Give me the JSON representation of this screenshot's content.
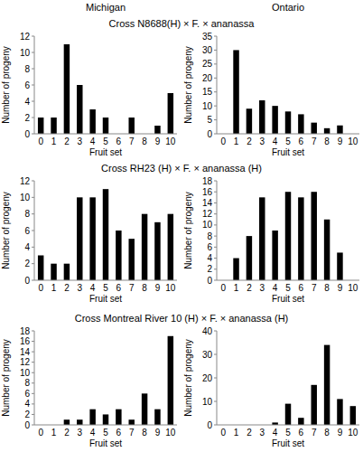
{
  "column_labels": [
    "Michigan",
    "Ontario"
  ],
  "row_titles": [
    "Cross N8688(H) × F. × ananassa",
    "Cross RH23 (H) × F. × ananassa (H)",
    "Cross Montreal River 10 (H) × F. × ananassa (H)"
  ],
  "chart_data": [
    {
      "type": "bar",
      "x_label": "Fruit set",
      "y_label": "Number of progeny",
      "color": "#000000",
      "categories": [
        0,
        1,
        2,
        3,
        4,
        5,
        6,
        7,
        8,
        9,
        10
      ],
      "values": [
        2,
        2,
        11,
        6,
        3,
        2,
        0,
        2,
        0,
        1,
        5
      ],
      "ylim": [
        0,
        12
      ],
      "yticks": [
        0,
        2,
        4,
        6,
        8,
        10,
        12
      ],
      "grid": false
    },
    {
      "type": "bar",
      "x_label": "Fruit set",
      "y_label": "Number of progeny",
      "color": "#000000",
      "categories": [
        0,
        1,
        2,
        3,
        4,
        5,
        6,
        7,
        8,
        9,
        10
      ],
      "values": [
        0,
        30,
        9,
        12,
        10,
        8,
        7,
        4,
        2,
        3,
        0
      ],
      "ylim": [
        0,
        35
      ],
      "yticks": [
        0,
        5,
        10,
        15,
        20,
        25,
        30,
        35
      ],
      "grid": false
    },
    {
      "type": "bar",
      "x_label": "Fruit set",
      "y_label": "Number of progeny",
      "color": "#000000",
      "categories": [
        0,
        1,
        2,
        3,
        4,
        5,
        6,
        7,
        8,
        9,
        10
      ],
      "values": [
        3,
        2,
        2,
        10,
        10,
        11,
        6,
        5,
        8,
        7,
        8
      ],
      "ylim": [
        0,
        12
      ],
      "yticks": [
        0,
        2,
        4,
        6,
        8,
        10,
        12
      ],
      "grid": false
    },
    {
      "type": "bar",
      "x_label": "Fruit set",
      "y_label": "Number of progeny",
      "color": "#000000",
      "categories": [
        0,
        1,
        2,
        3,
        4,
        5,
        6,
        7,
        8,
        9,
        10
      ],
      "values": [
        0,
        4,
        8,
        15,
        9,
        16,
        15,
        16,
        11,
        5,
        0
      ],
      "ylim": [
        0,
        18
      ],
      "yticks": [
        0,
        2,
        4,
        6,
        8,
        10,
        12,
        14,
        16,
        18
      ],
      "grid": false
    },
    {
      "type": "bar",
      "x_label": "Fruit set",
      "y_label": "Number of progeny",
      "color": "#000000",
      "categories": [
        0,
        1,
        2,
        3,
        4,
        5,
        6,
        7,
        8,
        9,
        10
      ],
      "values": [
        0,
        0,
        1,
        1,
        3,
        2,
        3,
        1,
        6,
        3,
        17
      ],
      "ylim": [
        0,
        18
      ],
      "yticks": [
        0,
        2,
        4,
        6,
        8,
        10,
        12,
        14,
        16,
        18
      ],
      "grid": false
    },
    {
      "type": "bar",
      "x_label": "Fruit set",
      "y_label": "Number of progeny",
      "color": "#000000",
      "categories": [
        0,
        1,
        2,
        3,
        4,
        5,
        6,
        7,
        8,
        9,
        10
      ],
      "values": [
        0,
        0,
        0,
        0,
        1,
        9,
        3,
        17,
        34,
        11,
        8
      ],
      "ylim": [
        0,
        40
      ],
      "yticks": [
        0,
        10,
        20,
        30,
        40
      ],
      "grid": false
    }
  ]
}
